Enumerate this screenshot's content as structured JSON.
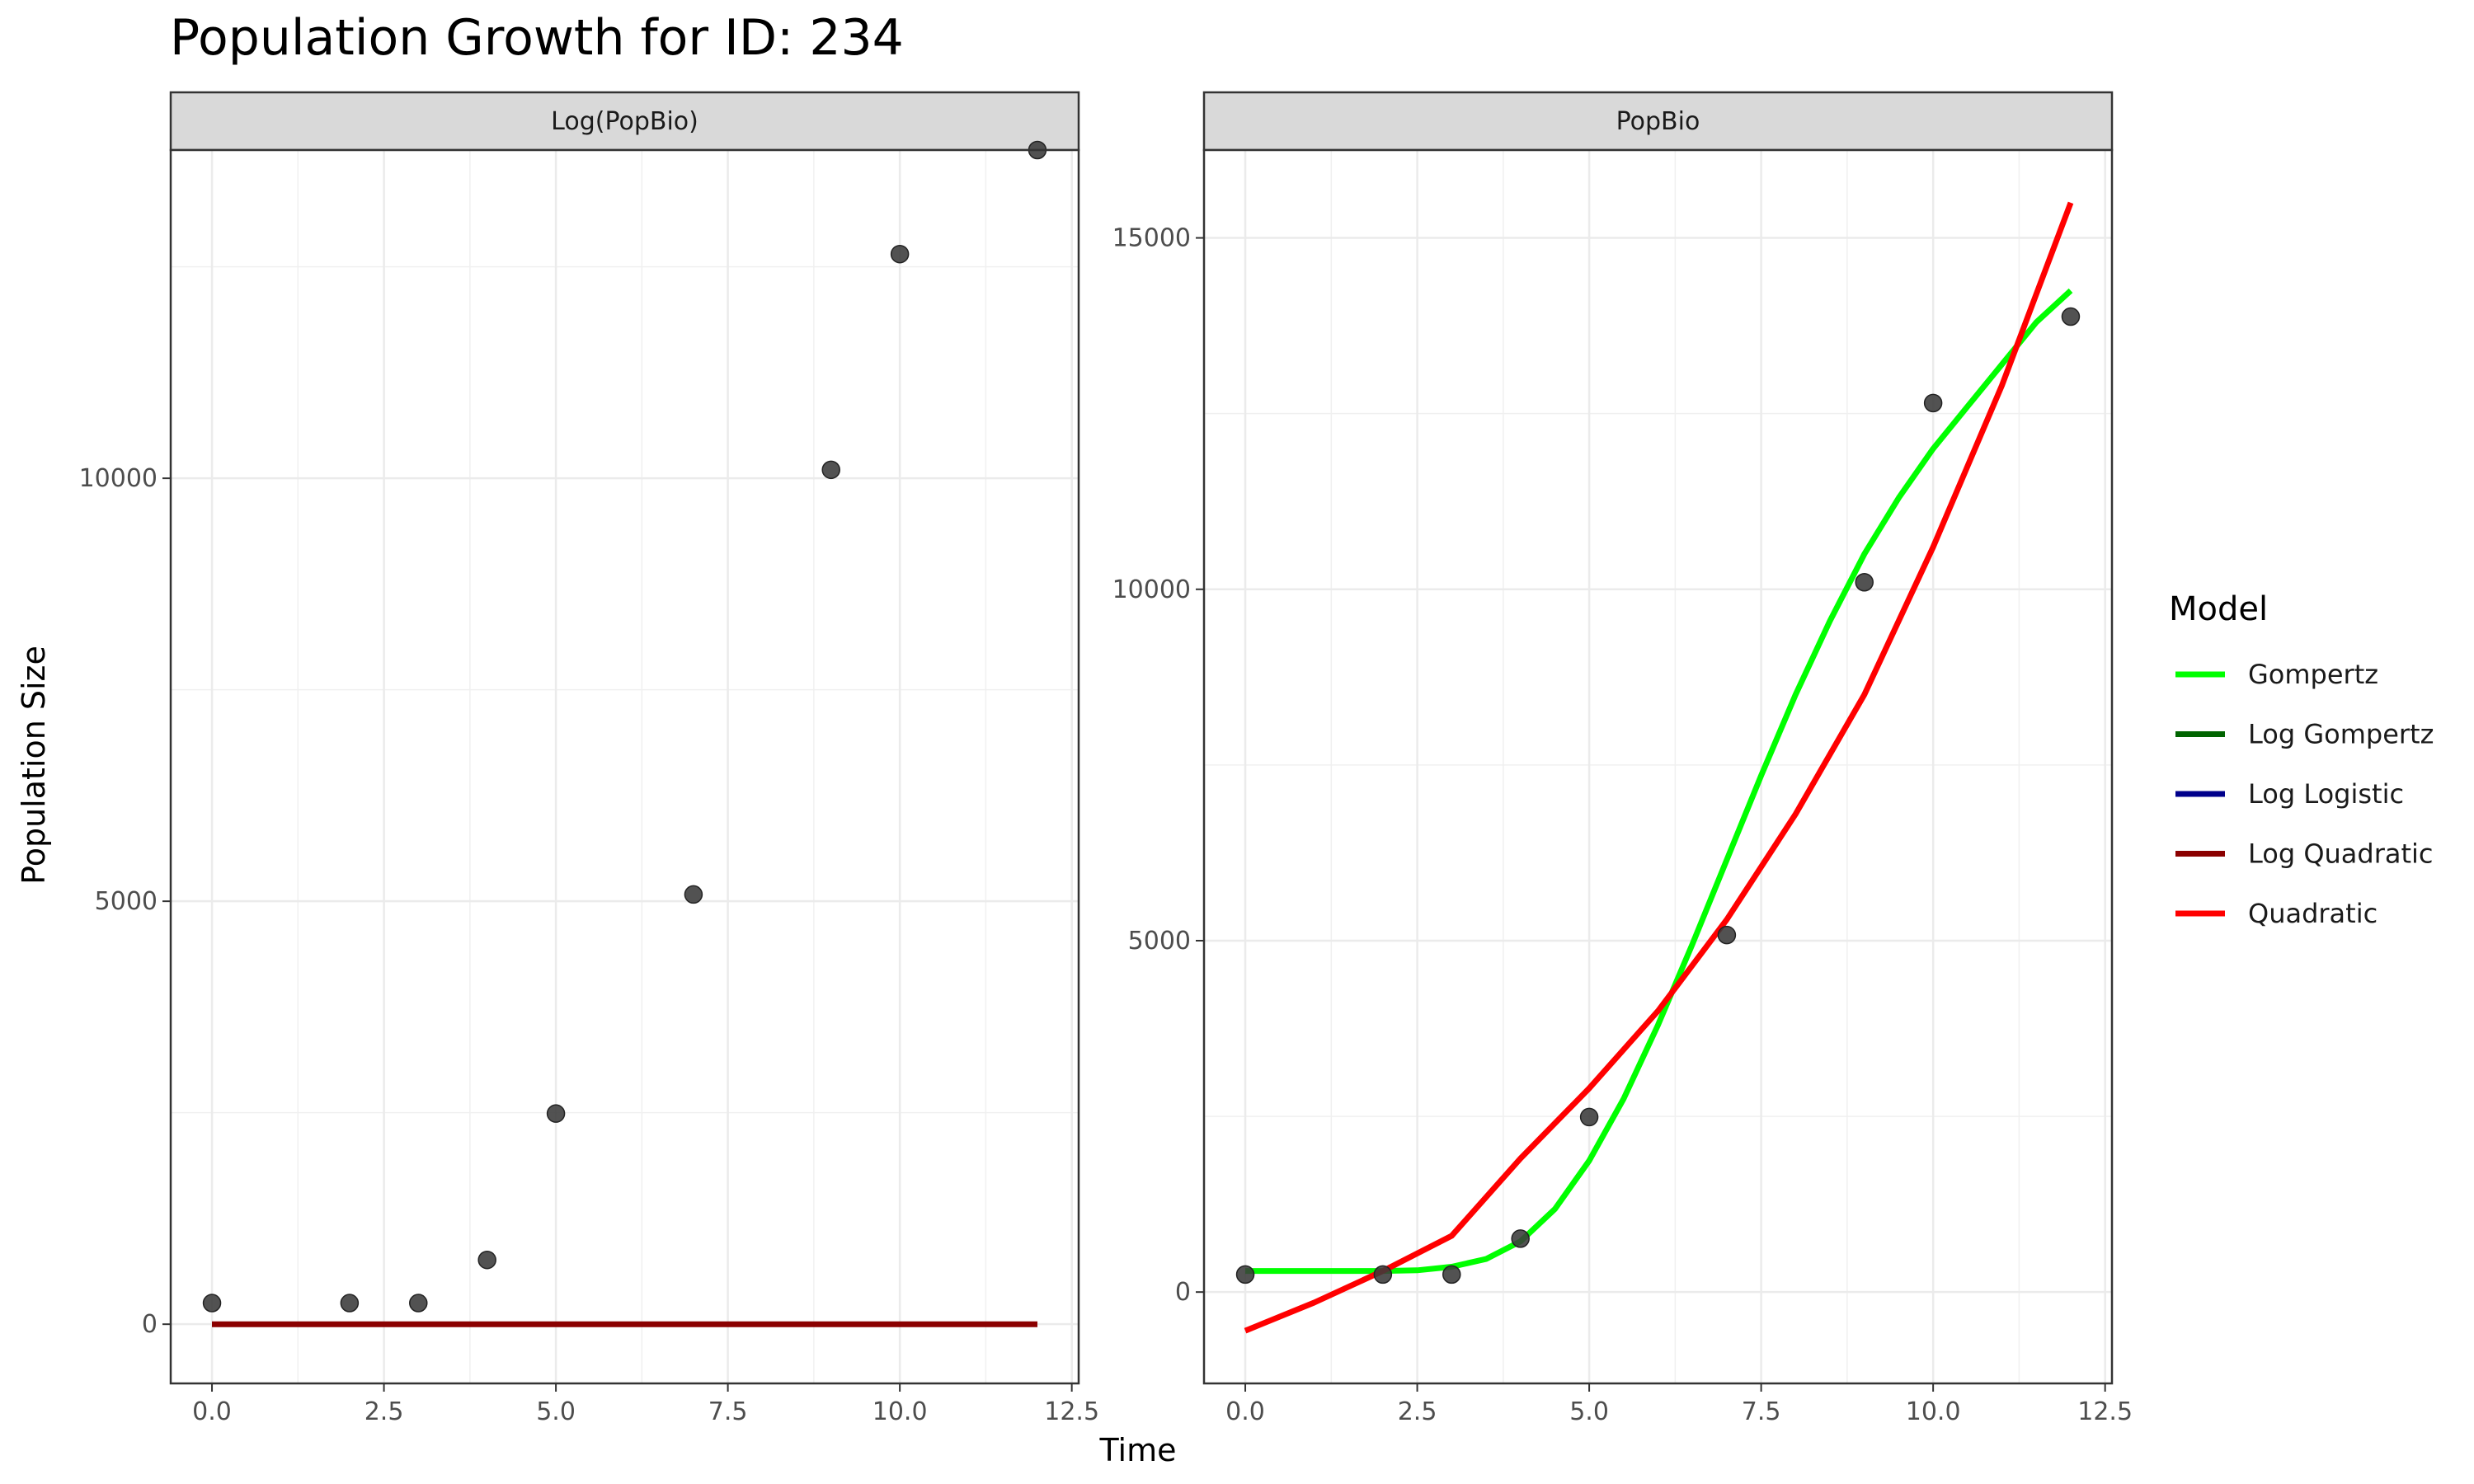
{
  "chart_data": {
    "type": "scatter",
    "title": "Population Growth for ID: 234",
    "xlabel": "Time",
    "ylabel": "Population Size",
    "grid": true,
    "legend": {
      "title": "Model",
      "position": "right",
      "entries": [
        {
          "name": "Gompertz",
          "color": "#00ff00"
        },
        {
          "name": "Log Gompertz",
          "color": "#006400"
        },
        {
          "name": "Log Logistic",
          "color": "#00008b"
        },
        {
          "name": "Log Quadratic",
          "color": "#8b0000"
        },
        {
          "name": "Quadratic",
          "color": "#ff0000"
        }
      ]
    },
    "observed": {
      "x": [
        0,
        2,
        3,
        4,
        5,
        7,
        9,
        10,
        12
      ],
      "y": [
        250,
        250,
        250,
        760,
        2490,
        5080,
        10100,
        12650,
        13880
      ]
    },
    "panels": [
      {
        "strip": "Log(PopBio)",
        "xlim": [
          -0.6,
          12.6
        ],
        "ylim": [
          -700,
          13880
        ],
        "xticks": [
          0.0,
          2.5,
          5.0,
          7.5,
          10.0,
          12.5
        ],
        "xtick_labels": [
          "0.0",
          "2.5",
          "5.0",
          "7.5",
          "10.0",
          "12.5"
        ],
        "yticks": [
          0,
          5000,
          10000
        ],
        "ytick_labels": [
          "0",
          "5000",
          "10000"
        ],
        "lines": [
          {
            "model": "Log Quadratic",
            "x": [
              0,
              12
            ],
            "y": [
              0,
              0
            ]
          }
        ]
      },
      {
        "strip": "PopBio",
        "xlim": [
          -0.6,
          12.6
        ],
        "ylim": [
          -1300,
          16250
        ],
        "xticks": [
          0.0,
          2.5,
          5.0,
          7.5,
          10.0,
          12.5
        ],
        "xtick_labels": [
          "0.0",
          "2.5",
          "5.0",
          "7.5",
          "10.0",
          "12.5"
        ],
        "yticks": [
          0,
          5000,
          10000,
          15000
        ],
        "ytick_labels": [
          "0",
          "5000",
          "10000",
          "15000"
        ],
        "lines": [
          {
            "model": "Gompertz",
            "x": [
              0,
              1,
              2,
              2.5,
              3,
              3.5,
              4,
              4.5,
              5,
              5.5,
              6,
              6.5,
              7,
              7.5,
              8,
              8.5,
              9,
              9.5,
              10,
              10.5,
              11,
              11.5,
              12
            ],
            "y": [
              300,
              300,
              300,
              310,
              360,
              470,
              720,
              1180,
              1870,
              2750,
              3800,
              4950,
              6150,
              7350,
              8500,
              9550,
              10500,
              11300,
              12000,
              12600,
              13200,
              13800,
              14250
            ]
          },
          {
            "model": "Quadratic",
            "x": [
              0,
              1,
              2,
              3,
              4,
              5,
              6,
              7,
              8,
              9,
              10,
              11,
              12
            ],
            "y": [
              -550,
              -150,
              300,
              800,
              1900,
              2900,
              4000,
              5300,
              6800,
              8500,
              10600,
              12900,
              15500
            ]
          }
        ]
      }
    ]
  }
}
